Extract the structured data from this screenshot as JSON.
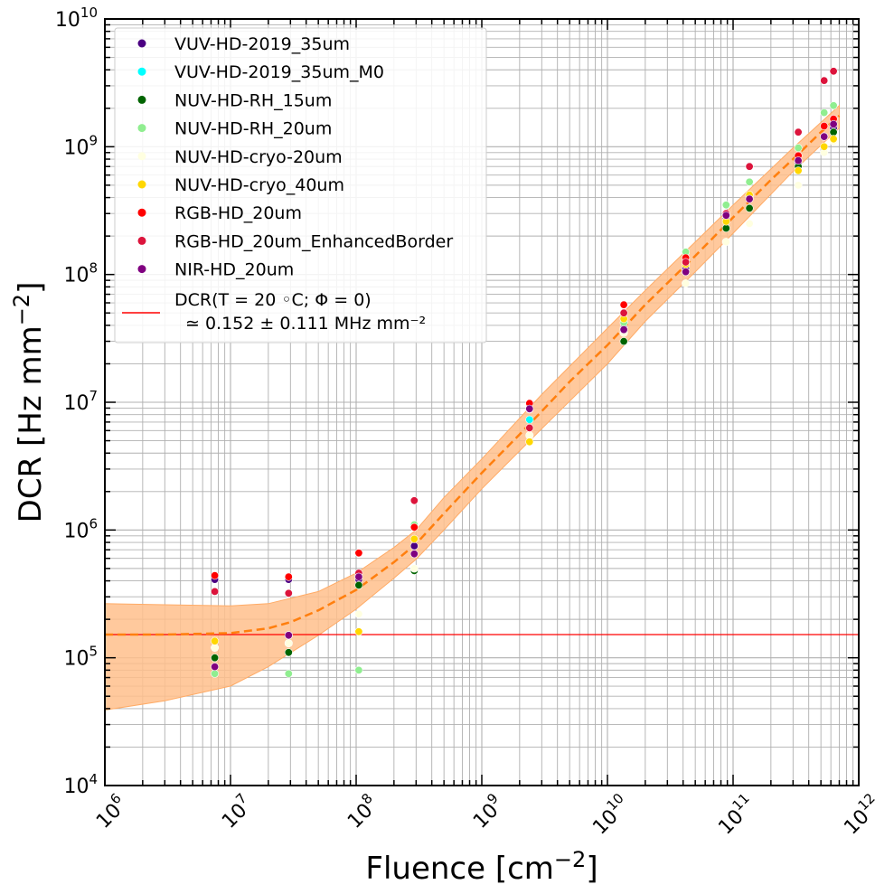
{
  "chart_data": {
    "type": "scatter",
    "x_scale": "log",
    "y_scale": "log",
    "xlim": [
      1000000.0,
      1000000000000.0
    ],
    "ylim": [
      10000.0,
      10000000000.0
    ],
    "grid": "major+minor",
    "xlabel": "Fluence [cm⁻²]",
    "ylabel": "DCR [Hz mm⁻²]",
    "xlabel_parts": {
      "main": "Fluence [cm",
      "sup": "−2",
      "close": "]"
    },
    "ylabel_parts": {
      "main": "DCR [Hz mm",
      "sup": "−2",
      "close": "]"
    },
    "xtick_exponents": [
      "6",
      "7",
      "8",
      "9",
      "10",
      "11",
      "12"
    ],
    "ytick_exponents": [
      "4",
      "5",
      "6",
      "7",
      "8",
      "9",
      "10"
    ],
    "tick_base": "10",
    "legend_position": "upper-left",
    "series": [
      {
        "name": "VUV-HD-2019_35um",
        "color": "#4b0082",
        "points": [
          [
            7500000.0,
            410000.0
          ],
          [
            29000000.0,
            410000.0
          ],
          [
            105000000.0,
            410000.0
          ],
          [
            290000000.0,
            750000.0
          ],
          [
            2400000000.0,
            8800000.0
          ],
          [
            13500000000.0,
            38000000.0
          ],
          [
            42000000000.0,
            110000000.0
          ],
          [
            88000000000.0,
            280000000.0
          ],
          [
            135000000000.0,
            400000000.0
          ],
          [
            330000000000.0,
            750000000.0
          ],
          [
            530000000000.0,
            1200000000.0
          ],
          [
            630000000000.0,
            1400000000.0
          ]
        ]
      },
      {
        "name": "VUV-HD-2019_35um_M0",
        "color": "#00ffff",
        "points": [
          [
            2400000000.0,
            7300000.0
          ]
        ]
      },
      {
        "name": "NUV-HD-RH_15um",
        "color": "#006400",
        "points": [
          [
            7500000.0,
            100000.0
          ],
          [
            29000000.0,
            110000.0
          ],
          [
            105000000.0,
            370000.0
          ],
          [
            290000000.0,
            480000.0
          ],
          [
            13500000000.0,
            30000000.0
          ],
          [
            42000000000.0,
            105000000.0
          ],
          [
            88000000000.0,
            230000000.0
          ],
          [
            135000000000.0,
            330000000.0
          ],
          [
            330000000000.0,
            700000000.0
          ],
          [
            630000000000.0,
            1300000000.0
          ]
        ]
      },
      {
        "name": "NUV-HD-RH_20um",
        "color": "#90ee90",
        "points": [
          [
            7500000.0,
            75000.0
          ],
          [
            29000000.0,
            75000.0
          ],
          [
            105000000.0,
            80000.0
          ],
          [
            290000000.0,
            1100000.0
          ],
          [
            2400000000.0,
            6300000.0
          ],
          [
            13500000000.0,
            42000000.0
          ],
          [
            42000000000.0,
            150000000.0
          ],
          [
            88000000000.0,
            350000000.0
          ],
          [
            135000000000.0,
            530000000.0
          ],
          [
            330000000000.0,
            980000000.0
          ],
          [
            530000000000.0,
            1850000000.0
          ],
          [
            630000000000.0,
            2100000000.0
          ]
        ]
      },
      {
        "name": "NUV-HD-cryo-20um",
        "color": "#ffffe0",
        "points": [
          [
            7500000.0,
            120000.0
          ],
          [
            29000000.0,
            130000.0
          ],
          [
            105000000.0,
            220000.0
          ],
          [
            290000000.0,
            500000.0
          ],
          [
            2400000000.0,
            5500000.0
          ],
          [
            13500000000.0,
            35000000.0
          ],
          [
            42000000000.0,
            85000000.0
          ],
          [
            88000000000.0,
            180000000.0
          ],
          [
            135000000000.0,
            250000000.0
          ],
          [
            330000000000.0,
            500000000.0
          ],
          [
            530000000000.0,
            900000000.0
          ],
          [
            630000000000.0,
            1100000000.0
          ]
        ]
      },
      {
        "name": "NUV-HD-cryo_40um",
        "color": "#ffd700",
        "points": [
          [
            7500000.0,
            135000.0
          ],
          [
            29000000.0,
            150000.0
          ],
          [
            105000000.0,
            160000.0
          ],
          [
            290000000.0,
            850000.0
          ],
          [
            2400000000.0,
            4900000.0
          ],
          [
            13500000000.0,
            45000000.0
          ],
          [
            42000000000.0,
            120000000.0
          ],
          [
            88000000000.0,
            260000000.0
          ],
          [
            135000000000.0,
            420000000.0
          ],
          [
            330000000000.0,
            650000000.0
          ],
          [
            530000000000.0,
            1000000000.0
          ],
          [
            630000000000.0,
            1150000000.0
          ]
        ]
      },
      {
        "name": "RGB-HD_20um",
        "color": "#ff0000",
        "points": [
          [
            7500000.0,
            440000.0
          ],
          [
            29000000.0,
            430000.0
          ],
          [
            105000000.0,
            660000.0
          ],
          [
            290000000.0,
            1050000.0
          ],
          [
            2400000000.0,
            9800000.0
          ],
          [
            13500000000.0,
            58000000.0
          ],
          [
            42000000000.0,
            135000000.0
          ],
          [
            88000000000.0,
            290000000.0
          ],
          [
            135000000000.0,
            700000000.0
          ],
          [
            330000000000.0,
            850000000.0
          ],
          [
            530000000000.0,
            1450000000.0
          ],
          [
            630000000000.0,
            1650000000.0
          ]
        ]
      },
      {
        "name": "RGB-HD_20um_EnhancedBorder",
        "color": "#dc143c",
        "points": [
          [
            7500000.0,
            330000.0
          ],
          [
            29000000.0,
            320000.0
          ],
          [
            105000000.0,
            460000.0
          ],
          [
            290000000.0,
            1700000.0
          ],
          [
            2400000000.0,
            6300000.0
          ],
          [
            13500000000.0,
            50000000.0
          ],
          [
            42000000000.0,
            125000000.0
          ],
          [
            88000000000.0,
            300000000.0
          ],
          [
            135000000000.0,
            700000000.0
          ],
          [
            330000000000.0,
            1300000000.0
          ],
          [
            530000000000.0,
            3300000000.0
          ],
          [
            630000000000.0,
            3900000000.0
          ]
        ]
      },
      {
        "name": "NIR-HD_20um",
        "color": "#800080",
        "points": [
          [
            7500000.0,
            85000.0
          ],
          [
            29000000.0,
            150000.0
          ],
          [
            105000000.0,
            430000.0
          ],
          [
            290000000.0,
            650000.0
          ],
          [
            2400000000.0,
            8900000.0
          ],
          [
            13500000000.0,
            37000000.0
          ],
          [
            42000000000.0,
            105000000.0
          ],
          [
            88000000000.0,
            290000000.0
          ],
          [
            135000000000.0,
            390000000.0
          ],
          [
            330000000000.0,
            780000000.0
          ],
          [
            530000000000.0,
            1200000000.0
          ],
          [
            630000000000.0,
            1500000000.0
          ]
        ]
      }
    ],
    "baseline": {
      "color": "#ff0000",
      "value": 152000.0,
      "label_line1": "DCR(T = 20 ◦C; Φ = 0)",
      "label_line2": "≃ 0.152 ± 0.111 MHz mm⁻²"
    },
    "fit": {
      "color": "#ff7f0e",
      "band_color": "#ffc08c",
      "curve": [
        [
          1000000.0,
          152000.0
        ],
        [
          3000000.0,
          152000.0
        ],
        [
          10000000.0,
          156000.0
        ],
        [
          20000000.0,
          170000.0
        ],
        [
          30000000.0,
          190000.0
        ],
        [
          50000000.0,
          235000.0
        ],
        [
          100000000.0,
          340000.0
        ],
        [
          200000000.0,
          560000.0
        ],
        [
          300000000.0,
          780000.0
        ],
        [
          500000000.0,
          1350000.0
        ],
        [
          1000000000.0,
          2800000.0
        ],
        [
          2000000000.0,
          5600000.0
        ],
        [
          3000000000.0,
          8500000.0
        ],
        [
          5000000000.0,
          14500000.0
        ],
        [
          10000000000.0,
          28000000.0
        ],
        [
          20000000000.0,
          58000000.0
        ],
        [
          50000000000.0,
          140000000.0
        ],
        [
          100000000000.0,
          280000000.0
        ],
        [
          200000000000.0,
          550000000.0
        ],
        [
          300000000000.0,
          800000000.0
        ],
        [
          500000000000.0,
          1300000000.0
        ],
        [
          700000000000.0,
          1750000000.0
        ]
      ],
      "band_upper": [
        [
          1000000.0,
          265000.0
        ],
        [
          3000000.0,
          260000.0
        ],
        [
          10000000.0,
          255000.0
        ],
        [
          20000000.0,
          265000.0
        ],
        [
          50000000.0,
          330000.0
        ],
        [
          100000000.0,
          460000.0
        ],
        [
          200000000.0,
          730000.0
        ],
        [
          300000000.0,
          1000000.0
        ],
        [
          500000000.0,
          1800000.0
        ],
        [
          1000000000.0,
          3600000.0
        ],
        [
          3000000000.0,
          11500000.0
        ],
        [
          10000000000.0,
          38000000.0
        ],
        [
          20000000000.0,
          75000000.0
        ],
        [
          50000000000.0,
          180000000.0
        ],
        [
          100000000000.0,
          350000000.0
        ],
        [
          300000000000.0,
          980000000.0
        ],
        [
          700000000000.0,
          2100000000.0
        ]
      ],
      "band_lower": [
        [
          1000000.0,
          39000.0
        ],
        [
          3000000.0,
          46000.0
        ],
        [
          10000000.0,
          60000.0
        ],
        [
          20000000.0,
          85000.0
        ],
        [
          50000000.0,
          150000.0
        ],
        [
          100000000.0,
          240000.0
        ],
        [
          200000000.0,
          420000.0
        ],
        [
          300000000.0,
          590000.0
        ],
        [
          500000000.0,
          1000000.0
        ],
        [
          1000000000.0,
          2100000.0
        ],
        [
          3000000000.0,
          6200000.0
        ],
        [
          10000000000.0,
          20000000.0
        ],
        [
          20000000000.0,
          43000000.0
        ],
        [
          50000000000.0,
          105000000.0
        ],
        [
          100000000000.0,
          210000000.0
        ],
        [
          300000000000.0,
          640000000.0
        ],
        [
          700000000000.0,
          1400000000.0
        ]
      ]
    }
  }
}
